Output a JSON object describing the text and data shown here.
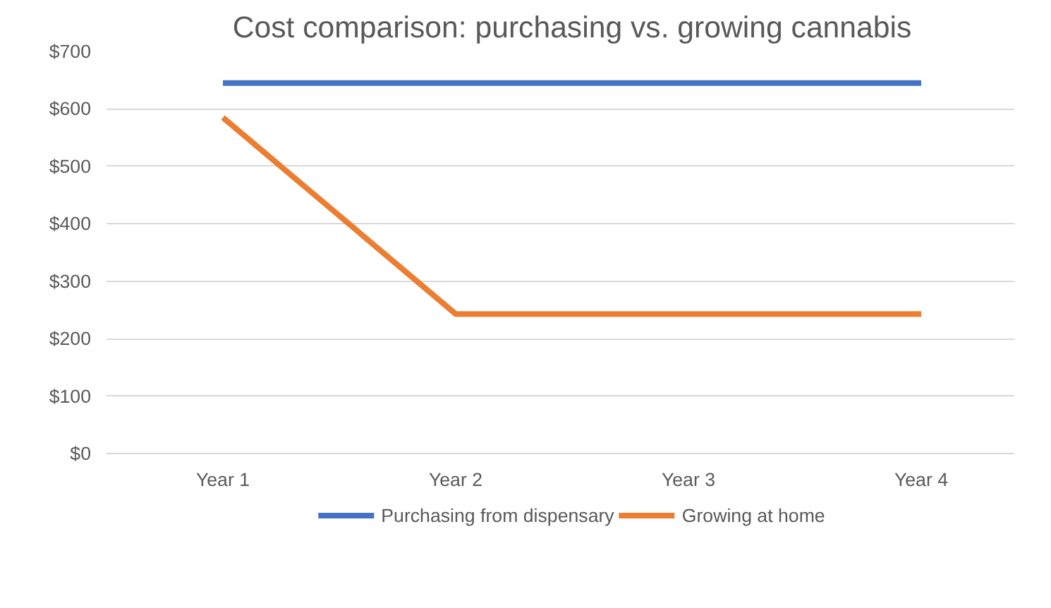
{
  "chart_data": {
    "type": "line",
    "title": "Cost comparison: purchasing vs. growing cannabis",
    "categories": [
      "Year 1",
      "Year 2",
      "Year 3",
      "Year 4"
    ],
    "series": [
      {
        "name": "Purchasing from dispensary",
        "color": "#4472c4",
        "values": [
          645,
          645,
          645,
          645
        ]
      },
      {
        "name": "Growing at home",
        "color": "#ed7d31",
        "values": [
          585,
          243,
          243,
          243
        ]
      }
    ],
    "ylim": [
      0,
      700
    ],
    "yticks": [
      {
        "value": 0,
        "label": "$0"
      },
      {
        "value": 100,
        "label": "$100"
      },
      {
        "value": 200,
        "label": "$200"
      },
      {
        "value": 300,
        "label": "$300"
      },
      {
        "value": 400,
        "label": "$400"
      },
      {
        "value": 500,
        "label": "$500"
      },
      {
        "value": 600,
        "label": "$600"
      },
      {
        "value": 700,
        "label": "$700"
      }
    ],
    "grid": "y",
    "legend": "bottom",
    "marker": "none",
    "line_style": "solid"
  }
}
